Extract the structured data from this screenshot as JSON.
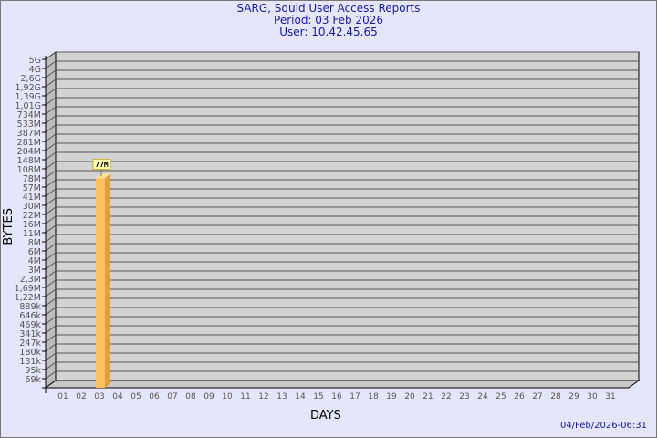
{
  "header": {
    "title": "SARG, Squid User Access Reports",
    "period": "Period: 03 Feb 2026",
    "user": "User: 10.42.45.65"
  },
  "footer": {
    "timestamp": "04/Feb/2026-06:31"
  },
  "chart_data": {
    "type": "bar",
    "title": "SARG, Squid User Access Reports",
    "xlabel": "DAYS",
    "ylabel": "BYTES",
    "y_scale": "log",
    "y_tick_labels": [
      "5G",
      "4G",
      "2,6G",
      "1,92G",
      "1,39G",
      "1,01G",
      "734M",
      "533M",
      "387M",
      "281M",
      "204M",
      "148M",
      "108M",
      "78M",
      "57M",
      "41M",
      "30M",
      "22M",
      "16M",
      "11M",
      "8M",
      "6M",
      "4M",
      "3M",
      "2,3M",
      "1,69M",
      "1,22M",
      "889k",
      "646k",
      "469k",
      "341k",
      "247k",
      "180k",
      "131k",
      "95k",
      "69k"
    ],
    "categories": [
      "01",
      "02",
      "03",
      "04",
      "05",
      "06",
      "07",
      "08",
      "09",
      "10",
      "11",
      "12",
      "13",
      "14",
      "15",
      "16",
      "17",
      "18",
      "19",
      "20",
      "21",
      "22",
      "23",
      "24",
      "25",
      "26",
      "27",
      "28",
      "29",
      "30",
      "31"
    ],
    "bars": [
      {
        "day": "03",
        "value": 77000000,
        "label": "77M"
      }
    ],
    "grid": true,
    "colors": {
      "bar_front": "#ffc060",
      "bar_side": "#e0a040",
      "bar_top": "#ffe090",
      "wall": "#d3d3d3",
      "label_box": "#ffffb0",
      "label_border": "#c8b030"
    }
  }
}
